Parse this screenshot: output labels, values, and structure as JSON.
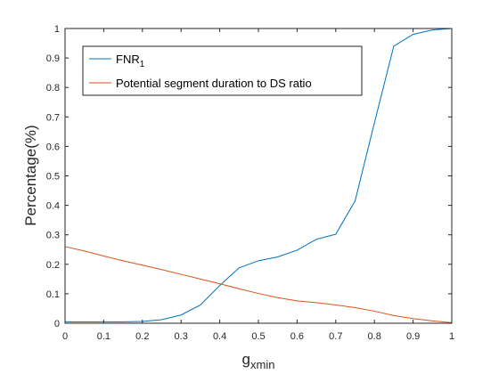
{
  "chart_data": {
    "type": "line",
    "xlabel": "g",
    "xlabel_sub": "xmin",
    "ylabel": "Percentage(%)",
    "xlim": [
      0,
      1
    ],
    "ylim": [
      0,
      1
    ],
    "xticks": [
      "0",
      "0.1",
      "0.2",
      "0.3",
      "0.4",
      "0.5",
      "0.6",
      "0.7",
      "0.8",
      "0.9",
      "1"
    ],
    "yticks": [
      "0",
      "0.1",
      "0.2",
      "0.3",
      "0.4",
      "0.5",
      "0.6",
      "0.7",
      "0.8",
      "0.9",
      "1"
    ],
    "grid": false,
    "legend_position": "top-left",
    "series": [
      {
        "name": "FNR",
        "name_sub": "1",
        "color": "#0072BD",
        "x": [
          0,
          0.05,
          0.1,
          0.15,
          0.2,
          0.25,
          0.3,
          0.35,
          0.4,
          0.45,
          0.5,
          0.55,
          0.6,
          0.65,
          0.7,
          0.75,
          0.8,
          0.85,
          0.9,
          0.95,
          1.0
        ],
        "y": [
          0.005,
          0.005,
          0.005,
          0.005,
          0.006,
          0.012,
          0.028,
          0.062,
          0.128,
          0.188,
          0.212,
          0.225,
          0.248,
          0.285,
          0.302,
          0.415,
          0.68,
          0.94,
          0.98,
          0.995,
          1.0
        ]
      },
      {
        "name": "Potential segment duration to DS ratio",
        "color": "#D95319",
        "x": [
          0,
          0.05,
          0.1,
          0.15,
          0.2,
          0.25,
          0.3,
          0.35,
          0.4,
          0.45,
          0.5,
          0.55,
          0.6,
          0.65,
          0.7,
          0.75,
          0.8,
          0.85,
          0.9,
          0.95,
          1.0
        ],
        "y": [
          0.26,
          0.245,
          0.228,
          0.212,
          0.197,
          0.182,
          0.166,
          0.15,
          0.134,
          0.117,
          0.101,
          0.087,
          0.076,
          0.07,
          0.062,
          0.053,
          0.041,
          0.026,
          0.016,
          0.008,
          0.002
        ]
      }
    ]
  }
}
